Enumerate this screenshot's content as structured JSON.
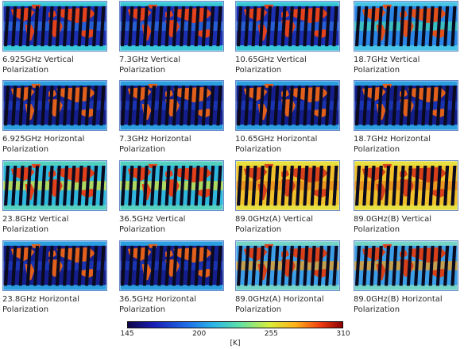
{
  "panels": [
    {
      "caption": "6.925GHz  Vertical\nPolarization",
      "palette": "lowV"
    },
    {
      "caption": "7.3GHz   Vertical\nPolarization",
      "palette": "lowV"
    },
    {
      "caption": "10.65GHz  Vertical\nPolarization",
      "palette": "lowV"
    },
    {
      "caption": "18.7GHz  Vertical\nPolarization",
      "palette": "midV"
    },
    {
      "caption": "6.925GHz Horizontal\nPolarization",
      "palette": "lowH"
    },
    {
      "caption": "7.3GHz  Horizontal\nPolarization",
      "palette": "lowH"
    },
    {
      "caption": "10.65GHz  Horizontal\nPolarization",
      "palette": "lowH"
    },
    {
      "caption": "18.7GHz  Horizontal\nPolarization",
      "palette": "lowH"
    },
    {
      "caption": "23.8GHz   Vertical\nPolarization",
      "palette": "vapV"
    },
    {
      "caption": "36.5GHz   Vertical\nPolarization",
      "palette": "vapV"
    },
    {
      "caption": "89.0GHz(A)  Vertical\nPolarization",
      "palette": "hiV"
    },
    {
      "caption": "89.0GHz(B)   Vertical\nPolarization",
      "palette": "hiV"
    },
    {
      "caption": "23.8GHz  Horizontal\nPolarization",
      "palette": "lowH"
    },
    {
      "caption": "36.5GHz  Horizontal\nPolarization",
      "palette": "lowH"
    },
    {
      "caption": "89.0GHz(A)   Horizontal\nPolarization",
      "palette": "hiH"
    },
    {
      "caption": "89.0GHz(B)  Horizontal\nPolarization",
      "palette": "hiH"
    }
  ],
  "colorbar": {
    "ticks": [
      "145",
      "200",
      "255",
      "310"
    ],
    "tick_values": [
      145,
      200,
      255,
      310
    ],
    "min": 145,
    "max": 310,
    "unit": "[K]"
  },
  "palettes": {
    "lowV": {
      "ocean": "#1c2fb0",
      "band": "#2c6fe0",
      "land": "#e4421c",
      "ice": "#39c8d8",
      "swath": "#0a0a1e"
    },
    "lowH": {
      "ocean": "#141e8c",
      "band": "#1e3cbe",
      "land": "#e2601c",
      "ice": "#2c9ee0",
      "swath": "#0a0a1e"
    },
    "midV": {
      "ocean": "#2a86e6",
      "band": "#40d0b4",
      "land": "#e2501c",
      "ice": "#48c4e6",
      "swath": "#0a0a1e"
    },
    "vapV": {
      "ocean": "#2fb6dc",
      "band": "#d8e43a",
      "land": "#e2401a",
      "ice": "#54d0c0",
      "swath": "#0a0a1e"
    },
    "hiV": {
      "ocean": "#f0c02a",
      "band": "#e98a1c",
      "land": "#d8401a",
      "ice": "#e8e040",
      "swath": "#0a0a1e"
    },
    "hiH": {
      "ocean": "#3c9ee6",
      "band": "#f0a01c",
      "land": "#d8401a",
      "ice": "#74d4c8",
      "swath": "#0a0a1e"
    }
  }
}
